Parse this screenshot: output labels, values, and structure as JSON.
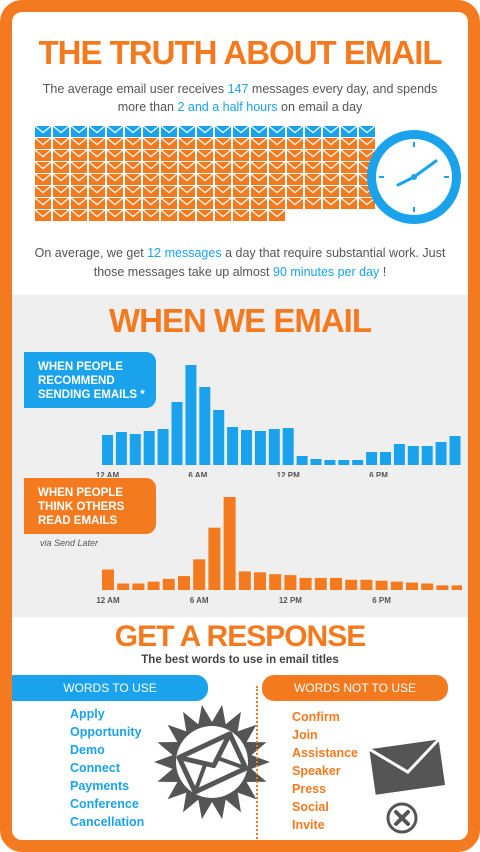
{
  "header": {
    "title": "THE TRUTH ABOUT EMAIL",
    "intro_part1": "The average email user receives ",
    "intro_messages": "147",
    "intro_part2": " messages every day, and spends more than ",
    "intro_hours": "2 and a half hours",
    "intro_part3": " on email a day"
  },
  "envelope_count": 147,
  "outro": {
    "part1": "On average, we get ",
    "messages": "12 messages",
    "part2": " a day that require substantial work. Just those messages take up almost ",
    "minutes": "90 minutes per day",
    "part3": " !"
  },
  "when_section": {
    "title": "WHEN WE EMAIL",
    "send_tag": "WHEN PEOPLE RECOMMEND SENDING EMAILS *",
    "read_tag": "WHEN PEOPLE THINK OTHERS READ EMAILS",
    "via": "via Send Later"
  },
  "chart_data": [
    {
      "type": "bar",
      "name": "WHEN PEOPLE RECOMMEND SENDING EMAILS *",
      "tick_labels": [
        "12 AM",
        "6 AM",
        "12 PM",
        "6 PM"
      ],
      "values": [
        30,
        33,
        31,
        34,
        36,
        63,
        100,
        78,
        55,
        38,
        35,
        34,
        36,
        37,
        9,
        6,
        5,
        5,
        5,
        13,
        13,
        21,
        19,
        19,
        23,
        29
      ],
      "color": "#1aa3ec"
    },
    {
      "type": "bar",
      "name": "WHEN PEOPLE THINK OTHERS READ EMAILS",
      "tick_labels": [
        "12 AM",
        "6 AM",
        "12 PM",
        "6 PM"
      ],
      "values": [
        22,
        7,
        7,
        9,
        12,
        15,
        33,
        67,
        100,
        20,
        19,
        17,
        16,
        13,
        13,
        13,
        11,
        11,
        10,
        9,
        8,
        7,
        5,
        5
      ],
      "color": "#f47a20"
    }
  ],
  "response": {
    "title": "GET A RESPONSE",
    "subtitle": "The best words to use in email titles",
    "use_header": "WORDS TO USE",
    "not_header": "WORDS NOT TO USE",
    "words_use": [
      "Apply",
      "Opportunity",
      "Demo",
      "Connect",
      "Payments",
      "Conference",
      "Cancellation"
    ],
    "words_not": [
      "Confirm",
      "Join",
      "Assistance",
      "Speaker",
      "Press",
      "Social",
      "Invite"
    ]
  },
  "colors": {
    "orange": "#f47a20",
    "blue": "#1aa3ec",
    "grey": "#555555"
  }
}
